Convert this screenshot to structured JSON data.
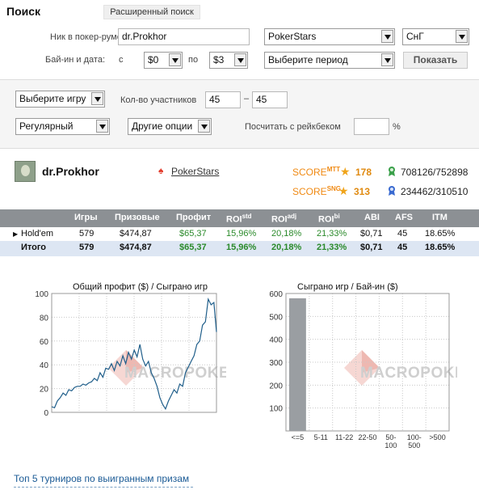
{
  "search": {
    "title": "Поиск",
    "advanced_label": "Расширенный поиск",
    "nick_label": "Ник в покер-руме:",
    "nick_value": "dr.Prokhor",
    "room_value": "PokerStars",
    "currency_value": "СнГ",
    "buyin_label": "Бай-ин и дата:",
    "from_label": "с",
    "from_value": "$0",
    "to_label": "по",
    "to_value": "$3",
    "period_value": "Выберите период",
    "show_label": "Показать"
  },
  "filters": {
    "game_value": "Выберите игру",
    "players_label": "Кол-во участников",
    "players_from": "45",
    "dash": "–",
    "players_to": "45",
    "type_value": "Регулярный",
    "options_value": "Другие опции",
    "rakeback_label": "Посчитать с рейкбеком",
    "rakeback_value": "",
    "percent": "%"
  },
  "player": {
    "name": "dr.Prokhor",
    "room": "PokerStars",
    "score_label": "SCORE",
    "mtt_sup": "MTT",
    "sng_sup": "SNG",
    "mtt_score": "178",
    "sng_score": "313",
    "mtt_rank": "708126/752898",
    "sng_rank": "234462/310510"
  },
  "table": {
    "headers": {
      "games": "Игры",
      "prizes": "Призовые",
      "profit": "Профит",
      "roi": "ROI",
      "roi_sup": "std",
      "roiadj": "ROI",
      "roiadj_sup": "adj",
      "roibi": "ROI",
      "roibi_sup": "bi",
      "abi": "ABI",
      "afs": "AFS",
      "itm": "ITM"
    },
    "rows": [
      {
        "name": "Hold'em",
        "games": "579",
        "prizes": "$474,87",
        "profit": "$65,37",
        "roi": "15,96%",
        "roiadj": "20,18%",
        "roibi": "21,33%",
        "abi": "$0,71",
        "afs": "45",
        "itm": "18.65%"
      },
      {
        "name": "Итого",
        "games": "579",
        "prizes": "$474,87",
        "profit": "$65,37",
        "roi": "15,96%",
        "roiadj": "20,18%",
        "roibi": "21,33%",
        "abi": "$0,71",
        "afs": "45",
        "itm": "18.65%"
      }
    ]
  },
  "charts": {
    "watermark": "MACROPOKER",
    "profit_chart": {
      "title": "Общий профит ($) / Сыграно игр",
      "yticks": [
        "100",
        "80",
        "60",
        "40",
        "20",
        "0"
      ]
    },
    "games_chart": {
      "title": "Сыграно игр / Бай-ин  ($)",
      "yticks": [
        "600",
        "500",
        "400",
        "300",
        "200",
        "100"
      ],
      "xticks": [
        "<=5",
        "5-11",
        "11-22",
        "22-50",
        "50-\n100",
        "100-\n500",
        ">500"
      ]
    }
  },
  "chart_data": [
    {
      "type": "line",
      "title": "Общий профит ($) / Сыграно игр",
      "ylim": [
        0,
        100
      ],
      "x": [
        0,
        10,
        20,
        30,
        40,
        50,
        60,
        70,
        80,
        90,
        100,
        110,
        120,
        130,
        140,
        150,
        160,
        170,
        180,
        190,
        200,
        210,
        220,
        230,
        240,
        250,
        260,
        270,
        280,
        290,
        300,
        310,
        320,
        330,
        340,
        350,
        360,
        370,
        380,
        390,
        400,
        410,
        420,
        430,
        440,
        450,
        460,
        470,
        480,
        490,
        500,
        510,
        520,
        530,
        540,
        550,
        560,
        570,
        579
      ],
      "series": [
        {
          "values": [
            0,
            -1,
            5,
            8,
            12,
            10,
            15,
            14,
            17,
            18,
            18,
            20,
            19,
            21,
            22,
            25,
            23,
            30,
            26,
            34,
            33,
            38,
            32,
            40,
            36,
            45,
            38,
            48,
            42,
            50,
            44,
            55,
            42,
            36,
            40,
            30,
            25,
            18,
            8,
            2,
            -2,
            5,
            10,
            15,
            12,
            20,
            18,
            30,
            35,
            40,
            45,
            55,
            58,
            72,
            75,
            95,
            90,
            92,
            66
          ]
        }
      ]
    },
    {
      "type": "bar",
      "title": "Сыграно игр / Бай-ин  ($)",
      "categories": [
        "<=5",
        "5-11",
        "11-22",
        "22-50",
        "50-100",
        "100-500",
        ">500"
      ],
      "values": [
        579,
        0,
        0,
        0,
        0,
        0,
        0
      ],
      "ylim": [
        0,
        600
      ]
    }
  ],
  "footer": {
    "top5_link": "Топ 5 турниров по выигранным призам"
  },
  "colors": {
    "header_band": "#8c9094",
    "score": "#f08a14",
    "profit_green": "#2a8a2a",
    "line": "#1f5e8a",
    "bar": "#9a9ea2",
    "link": "#1a5a95"
  }
}
